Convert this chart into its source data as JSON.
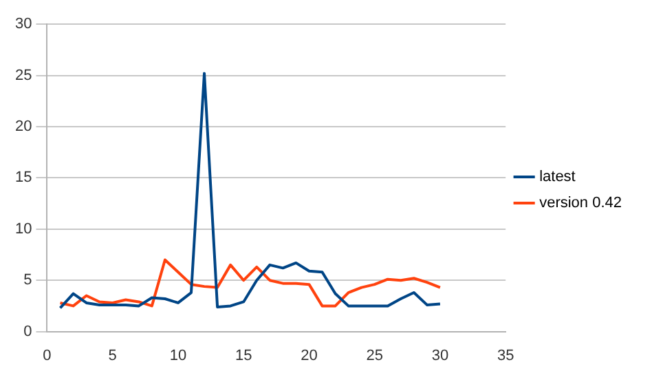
{
  "chart_data": {
    "type": "line",
    "x": [
      1,
      2,
      3,
      4,
      5,
      6,
      7,
      8,
      9,
      10,
      11,
      12,
      13,
      14,
      15,
      16,
      17,
      18,
      19,
      20,
      21,
      22,
      23,
      24,
      25,
      26,
      27,
      28,
      29,
      30
    ],
    "series": [
      {
        "name": "latest",
        "color": "#004586",
        "values": [
          2.3,
          3.7,
          2.8,
          2.6,
          2.6,
          2.6,
          2.5,
          3.3,
          3.2,
          2.8,
          3.8,
          25.2,
          2.4,
          2.5,
          2.9,
          5.0,
          6.5,
          6.2,
          6.7,
          5.9,
          5.8,
          3.7,
          2.5,
          2.5,
          2.5,
          2.5,
          3.2,
          3.8,
          2.6,
          2.7
        ]
      },
      {
        "name": "version 0.42",
        "color": "#ff420e",
        "values": [
          2.8,
          2.5,
          3.5,
          2.9,
          2.8,
          3.1,
          2.9,
          2.5,
          7.0,
          5.8,
          4.6,
          4.4,
          4.3,
          6.5,
          5.0,
          6.3,
          5.0,
          4.7,
          4.7,
          4.6,
          2.5,
          2.5,
          3.8,
          4.3,
          4.6,
          5.1,
          5.0,
          5.2,
          4.8,
          4.3
        ]
      }
    ],
    "xlim": [
      0,
      35
    ],
    "xticks": [
      0,
      5,
      10,
      15,
      20,
      25,
      30,
      35
    ],
    "ylim": [
      0,
      30
    ],
    "yticks": [
      0,
      5,
      10,
      15,
      20,
      25,
      30
    ],
    "grid": "y",
    "legend": "right",
    "marker": "none",
    "line_style": "solid"
  }
}
